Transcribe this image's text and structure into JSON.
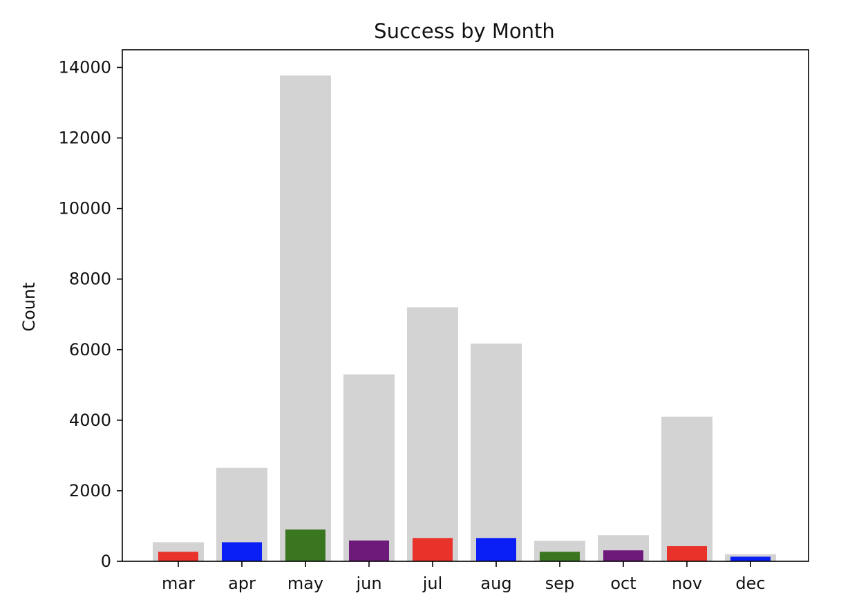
{
  "chart_data": {
    "type": "bar",
    "title": "Success by Month",
    "xlabel": "",
    "ylabel": "Count",
    "ylim": [
      0,
      14500
    ],
    "yticks": [
      0,
      2000,
      4000,
      6000,
      8000,
      10000,
      12000,
      14000
    ],
    "categories": [
      "mar",
      "apr",
      "may",
      "jun",
      "jul",
      "aug",
      "sep",
      "oct",
      "nov",
      "dec"
    ],
    "series": [
      {
        "role": "total",
        "color": "#d3d3d3",
        "values": [
          540,
          2650,
          13770,
          5300,
          7200,
          6170,
          580,
          740,
          4100,
          200
        ]
      },
      {
        "role": "success",
        "colors": [
          "#e8322a",
          "#0a1ff5",
          "#3a7520",
          "#6e1a7a",
          "#e8322a",
          "#0a1ff5",
          "#3a7520",
          "#6e1a7a",
          "#e8322a",
          "#0a1ff5"
        ],
        "values": [
          270,
          540,
          900,
          590,
          660,
          660,
          270,
          310,
          430,
          130
        ]
      }
    ],
    "grid": false,
    "legend": "none"
  }
}
